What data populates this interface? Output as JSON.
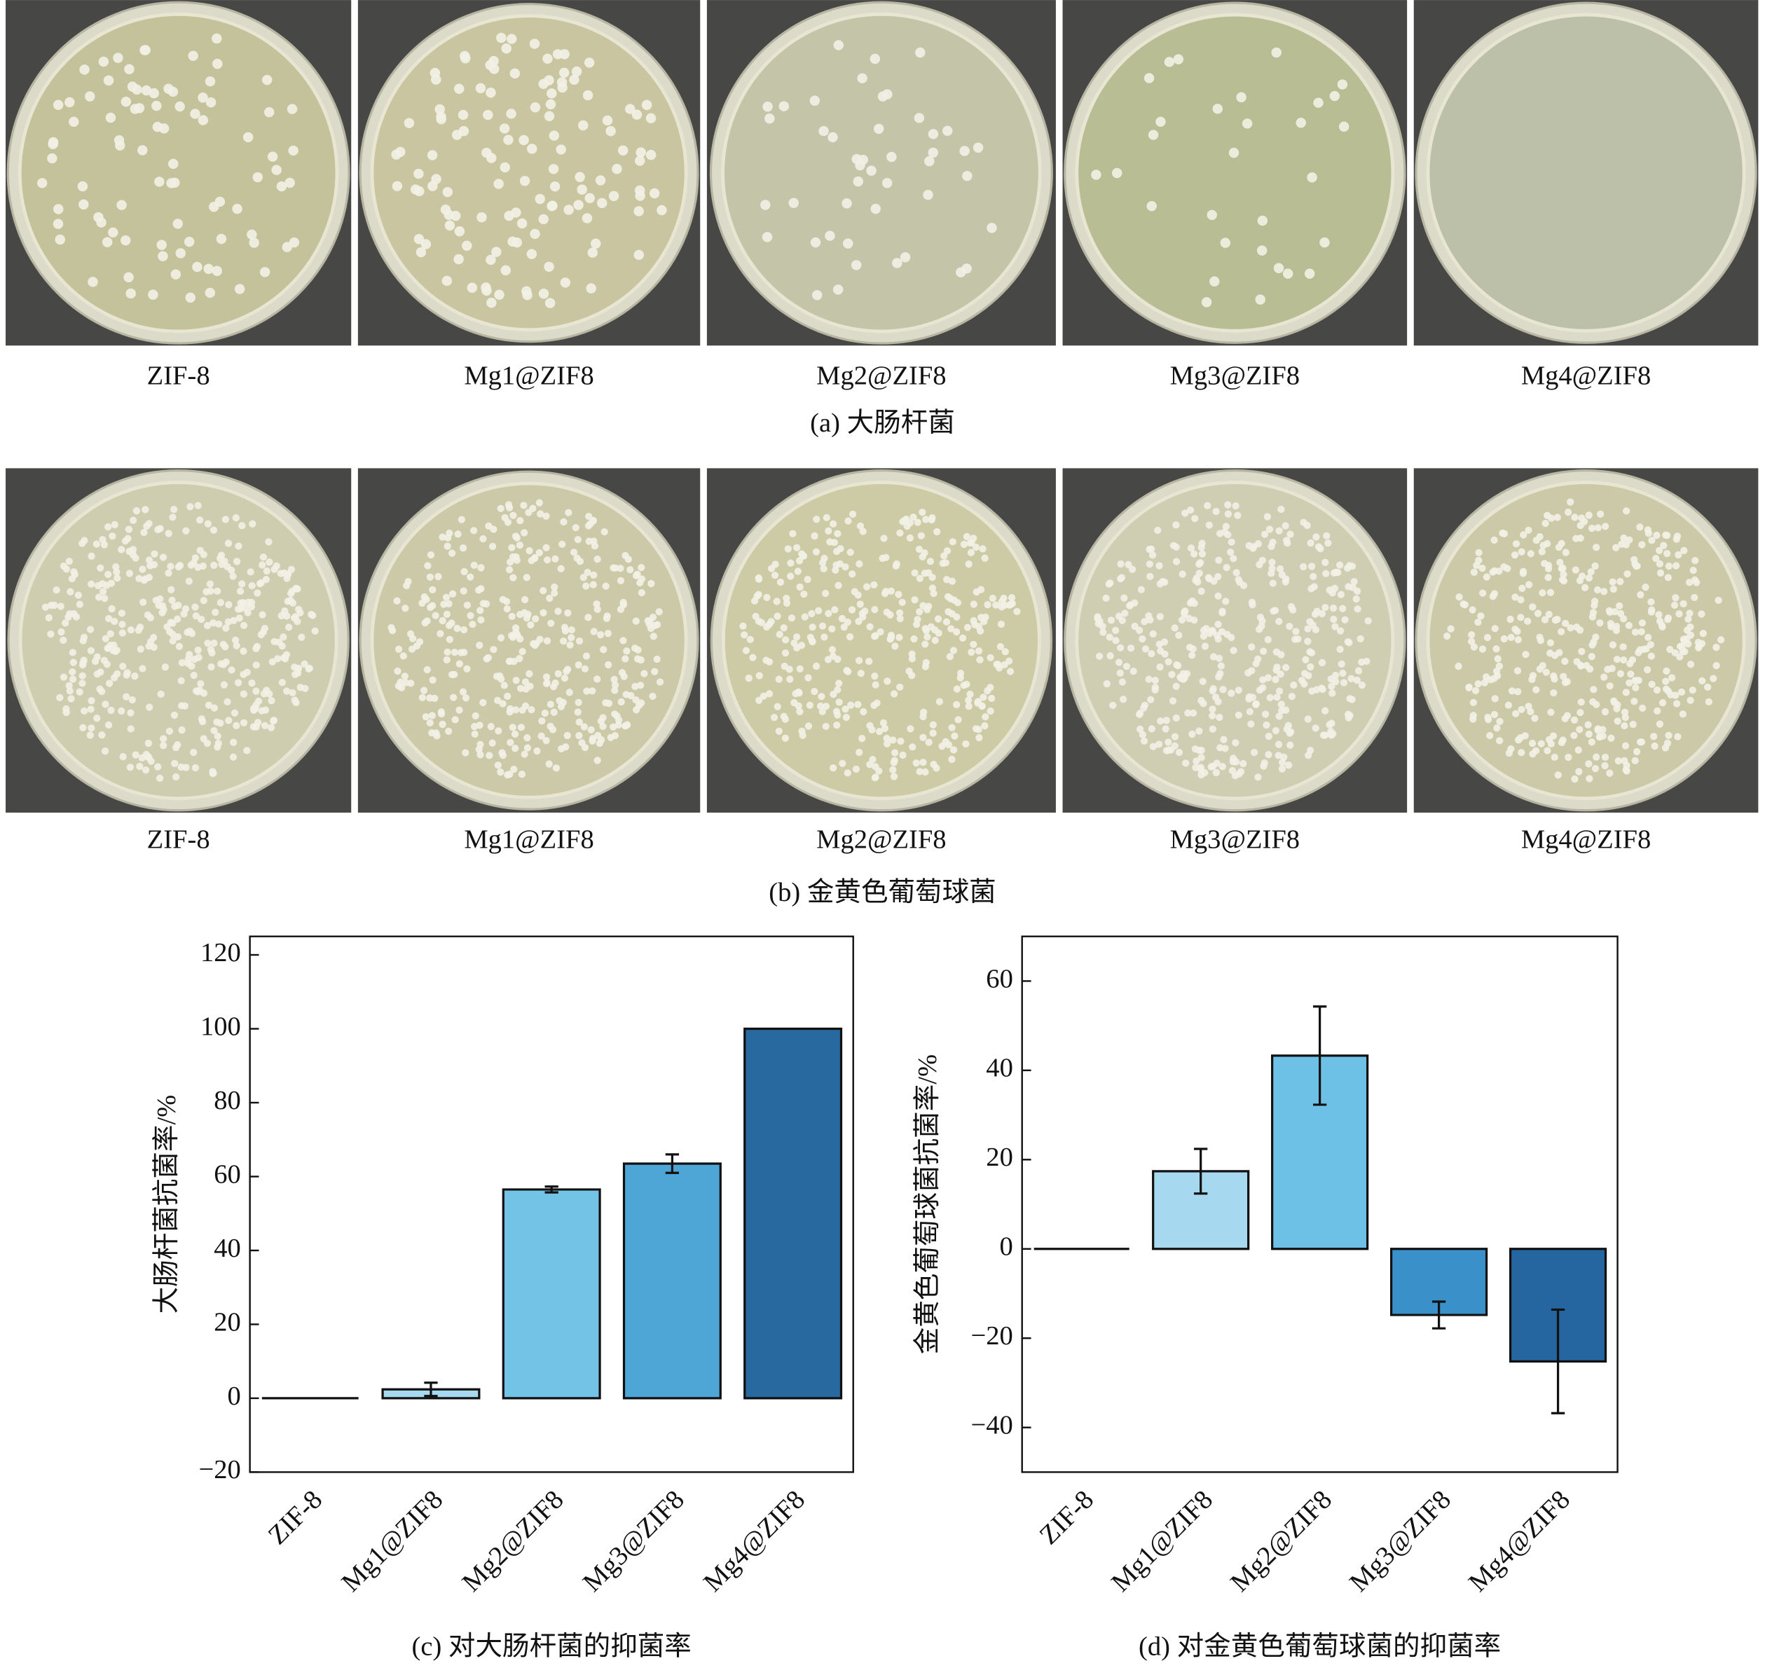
{
  "panels": [
    {
      "labels": [
        "ZIF-8",
        "Mg1@ZIF8",
        "Mg2@ZIF8",
        "Mg3@ZIF8",
        "Mg4@ZIF8"
      ],
      "caption": "(a) 大肠杆菌"
    },
    {
      "labels": [
        "ZIF-8",
        "Mg1@ZIF8",
        "Mg2@ZIF8",
        "Mg3@ZIF8",
        "Mg4@ZIF8"
      ],
      "caption": "(b) 金黄色葡萄球菌"
    }
  ],
  "chart_data": [
    {
      "type": "bar",
      "caption": "(c) 对大肠杆菌的抑菌率",
      "y_label": "大肠杆菌抗菌率/%",
      "categories": [
        "ZIF-8",
        "Mg1@ZIF8",
        "Mg2@ZIF8",
        "Mg3@ZIF8",
        "Mg4@ZIF8"
      ],
      "values": [
        0,
        2.4,
        56.5,
        63.5,
        100
      ],
      "errors": [
        null,
        1.8,
        0.8,
        2.5,
        null
      ],
      "colors": [
        "#dc2a28",
        "#a6d8ef",
        "#72c3e6",
        "#4ea6d6",
        "#2869a0"
      ],
      "ylim": [
        -20,
        125
      ],
      "yticks": [
        {
          "value": -20,
          "label": "−20"
        },
        0,
        20,
        40,
        60,
        80,
        100,
        120
      ]
    },
    {
      "type": "bar",
      "caption": "(d) 对金黄色葡萄球菌的抑菌率",
      "y_label": "金黄色葡萄球菌抗菌率/%",
      "categories": [
        "ZIF-8",
        "Mg1@ZIF8",
        "Mg2@ZIF8",
        "Mg3@ZIF8",
        "Mg4@ZIF8"
      ],
      "values": [
        0,
        17.4,
        43.3,
        -14.8,
        -25.2
      ],
      "errors": [
        null,
        5,
        11,
        3,
        11.6
      ],
      "colors": [
        "#dc2a28",
        "#a6d8ef",
        "#6ec1e6",
        "#3a90c8",
        "#2566a0"
      ],
      "ylim": [
        -50,
        70
      ],
      "yticks": [
        {
          "value": -40,
          "label": "−40"
        },
        {
          "value": -20,
          "label": "−20"
        },
        0,
        20,
        40,
        60
      ]
    }
  ]
}
